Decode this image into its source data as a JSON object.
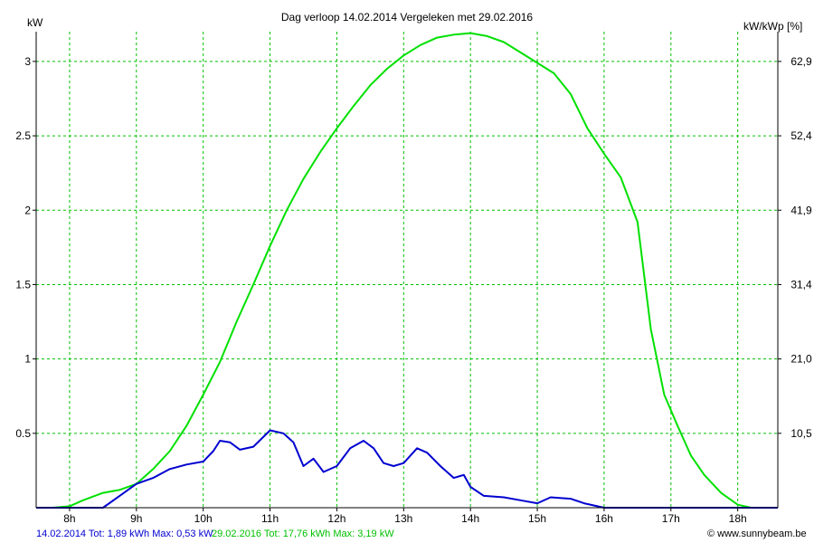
{
  "chart_data": {
    "type": "line",
    "title": "Dag  verloop 14.02.2014   Vergeleken met 29.02.2016",
    "ylabel_left": "kW",
    "ylabel_right": "kW/kWp [%]",
    "x_ticks": [
      "8h",
      "9h",
      "10h",
      "11h",
      "12h",
      "13h",
      "14h",
      "15h",
      "16h",
      "17h",
      "18h"
    ],
    "xlim": [
      7.5,
      18.6
    ],
    "ylim": [
      0,
      3.2
    ],
    "y_ticks_left": [
      "0.5",
      "1",
      "1.5",
      "2",
      "2.5",
      "3"
    ],
    "y_ticks_left_values": [
      0.5,
      1,
      1.5,
      2,
      2.5,
      3
    ],
    "y_ticks_right": [
      "10,5",
      "21,0",
      "31,4",
      "41,9",
      "52,4",
      "62,9"
    ],
    "grid": true,
    "series": [
      {
        "name": "29.02.2016",
        "color": "#00e000",
        "x": [
          7.5,
          7.75,
          8.0,
          8.2,
          8.5,
          8.75,
          9.0,
          9.25,
          9.5,
          9.75,
          10.0,
          10.25,
          10.5,
          10.75,
          11.0,
          11.25,
          11.5,
          11.75,
          12.0,
          12.25,
          12.5,
          12.75,
          13.0,
          13.25,
          13.5,
          13.75,
          14.0,
          14.25,
          14.5,
          14.75,
          15.0,
          15.25,
          15.5,
          15.75,
          16.0,
          16.25,
          16.5,
          16.7,
          16.9,
          17.1,
          17.3,
          17.5,
          17.75,
          18.0,
          18.2,
          18.4,
          18.6
        ],
        "y": [
          0,
          0,
          0.01,
          0.05,
          0.1,
          0.12,
          0.16,
          0.26,
          0.38,
          0.55,
          0.76,
          0.98,
          1.25,
          1.5,
          1.76,
          2.0,
          2.21,
          2.39,
          2.55,
          2.7,
          2.84,
          2.95,
          3.04,
          3.11,
          3.16,
          3.18,
          3.19,
          3.17,
          3.13,
          3.06,
          2.99,
          2.92,
          2.78,
          2.55,
          2.38,
          2.22,
          1.92,
          1.2,
          0.76,
          0.55,
          0.35,
          0.22,
          0.1,
          0.02,
          0,
          0,
          0
        ]
      },
      {
        "name": "14.02.2014",
        "color": "#0000d0",
        "x": [
          7.5,
          8.0,
          8.5,
          8.75,
          9.0,
          9.25,
          9.5,
          9.75,
          10.0,
          10.15,
          10.25,
          10.4,
          10.55,
          10.75,
          11.0,
          11.2,
          11.35,
          11.5,
          11.65,
          11.8,
          12.0,
          12.2,
          12.4,
          12.55,
          12.7,
          12.85,
          13.0,
          13.2,
          13.35,
          13.55,
          13.75,
          13.9,
          14.0,
          14.2,
          14.5,
          14.75,
          15.0,
          15.2,
          15.5,
          15.7,
          16.0,
          16.5,
          17.0,
          17.5,
          18.0,
          18.6
        ],
        "y": [
          0,
          0,
          0,
          0.08,
          0.16,
          0.2,
          0.26,
          0.29,
          0.31,
          0.38,
          0.45,
          0.44,
          0.39,
          0.41,
          0.52,
          0.5,
          0.44,
          0.28,
          0.33,
          0.24,
          0.28,
          0.4,
          0.45,
          0.4,
          0.3,
          0.28,
          0.3,
          0.4,
          0.37,
          0.28,
          0.2,
          0.22,
          0.14,
          0.08,
          0.07,
          0.05,
          0.03,
          0.07,
          0.06,
          0.03,
          0,
          0,
          0,
          0,
          0,
          0
        ]
      }
    ],
    "legend_blue": "14.02.2014 Tot: 1,89 kWh Max: 0,53 kW",
    "legend_green": "29.02.2016 Tot: 17,76 kWh Max: 3,19 kW",
    "copyright": "© www.sunnybeam.be"
  }
}
